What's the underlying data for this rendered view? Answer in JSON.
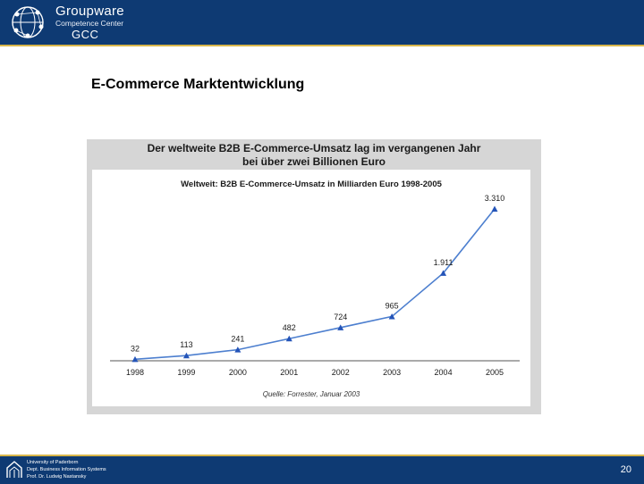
{
  "header": {
    "logo_name": "Groupware",
    "logo_sub": "Competence Center",
    "logo_abbr": "GCC"
  },
  "slide": {
    "title": "E-Commerce Marktentwicklung"
  },
  "figure": {
    "title_line1": "Der weltweite B2B E-Commerce-Umsatz lag im vergangenen Jahr",
    "title_line2": "bei über zwei Billionen Euro"
  },
  "chart_data": {
    "type": "line",
    "title": "Weltweit: B2B E-Commerce-Umsatz in Milliarden Euro 1998-2005",
    "source": "Quelle: Forrester, Januar 2003",
    "categories": [
      "1998",
      "1999",
      "2000",
      "2001",
      "2002",
      "2003",
      "2004",
      "2005"
    ],
    "values": [
      32,
      113,
      241,
      482,
      724,
      965,
      1911,
      3310
    ],
    "value_labels": [
      "32",
      "113",
      "241",
      "482",
      "724",
      "965",
      "1.911",
      "3.310"
    ],
    "line_color": "#4d7fcf",
    "marker_color": "#2454b8",
    "grid": false,
    "legend": "none"
  },
  "footer": {
    "line1": "University of Paderborn",
    "line2": "Dept. Business Information Systems",
    "line3": "Prof. Dr. Ludwig Nastansky",
    "page_number": "20"
  }
}
